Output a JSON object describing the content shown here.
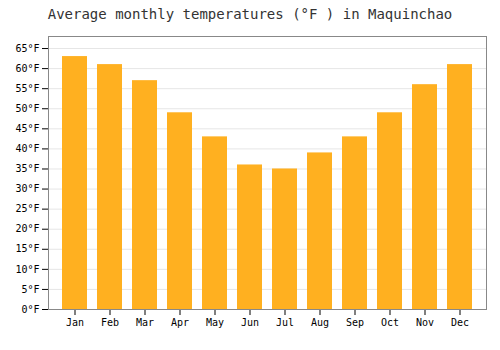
{
  "chart_data": {
    "type": "bar",
    "title": "Average monthly temperatures (°F ) in Maquinchao",
    "categories": [
      "Jan",
      "Feb",
      "Mar",
      "Apr",
      "May",
      "Jun",
      "Jul",
      "Aug",
      "Sep",
      "Oct",
      "Nov",
      "Dec"
    ],
    "values": [
      63,
      61,
      57,
      49,
      43,
      36,
      35,
      39,
      43,
      49,
      56,
      61
    ],
    "color": "#FFB020",
    "ylim": [
      0,
      68
    ],
    "yticks": [
      {
        "value": 0,
        "label": "0°F"
      },
      {
        "value": 5,
        "label": "5°F"
      },
      {
        "value": 10,
        "label": "10°F"
      },
      {
        "value": 15,
        "label": "15°F"
      },
      {
        "value": 20,
        "label": "20°F"
      },
      {
        "value": 25,
        "label": "25°F"
      },
      {
        "value": 30,
        "label": "30°F"
      },
      {
        "value": 35,
        "label": "35°F"
      },
      {
        "value": 40,
        "label": "40°F"
      },
      {
        "value": 45,
        "label": "45°F"
      },
      {
        "value": 50,
        "label": "50°F"
      },
      {
        "value": 55,
        "label": "55°F"
      },
      {
        "value": 60,
        "label": "60°F"
      },
      {
        "value": 65,
        "label": "65°F"
      }
    ],
    "grid": true
  }
}
